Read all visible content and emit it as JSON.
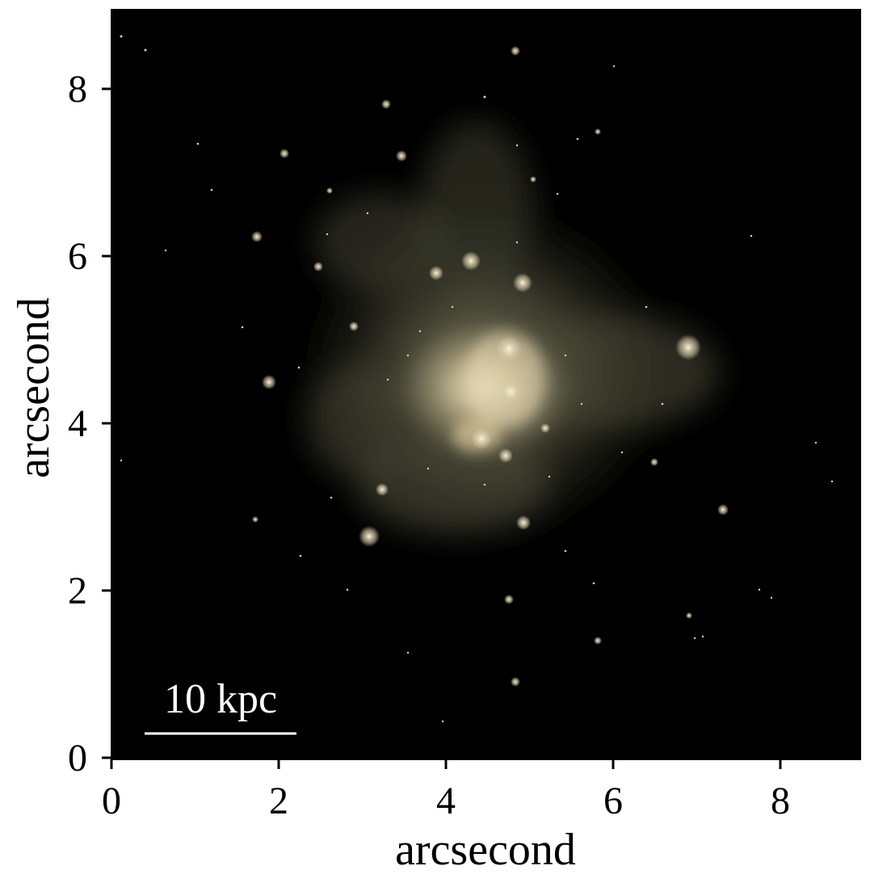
{
  "figure": {
    "x_axis": {
      "label": "arcsecond",
      "ticks": [
        "0",
        "2",
        "4",
        "6",
        "8"
      ],
      "range": [
        0,
        9
      ]
    },
    "y_axis": {
      "label": "arcsecond",
      "ticks": [
        "0",
        "2",
        "4",
        "6",
        "8"
      ],
      "range": [
        0,
        9
      ]
    },
    "scale_bar": {
      "label": "10 kpc"
    },
    "image": {
      "subject": "galaxy",
      "background_color": "#000000",
      "core_color": "#efe2c0",
      "halo_color": "#7e7c5e"
    }
  }
}
